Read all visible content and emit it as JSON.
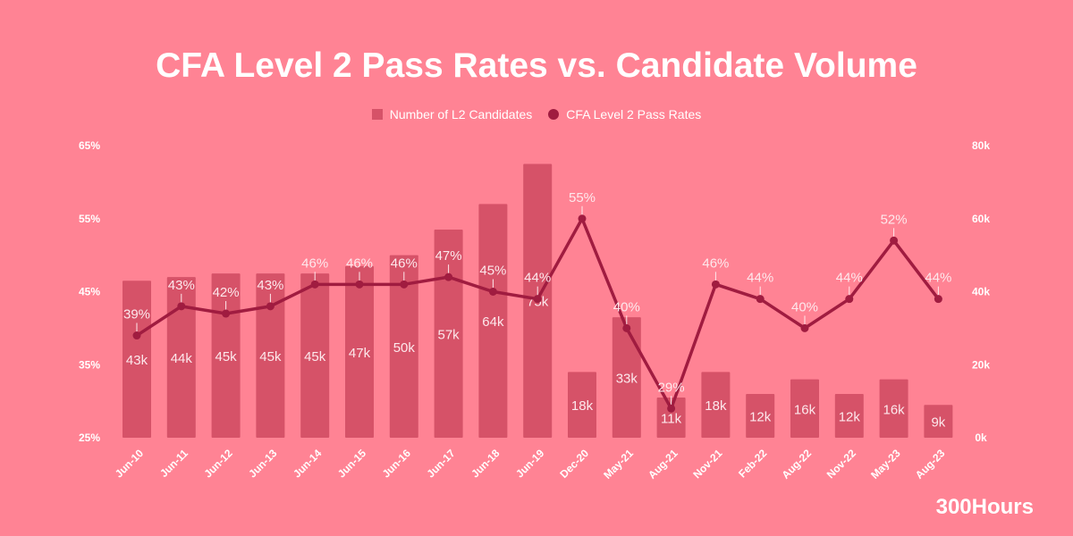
{
  "chart_data": {
    "type": "bar+line",
    "title": "CFA Level 2 Pass Rates vs. Candidate Volume",
    "categories": [
      "Jun-10",
      "Jun-11",
      "Jun-12",
      "Jun-13",
      "Jun-14",
      "Jun-15",
      "Jun-16",
      "Jun-17",
      "Jun-18",
      "Jun-19",
      "Dec-20",
      "May-21",
      "Aug-21",
      "Nov-21",
      "Feb-22",
      "Aug-22",
      "Nov-22",
      "May-23",
      "Aug-23"
    ],
    "series": [
      {
        "name": "Number of L2 Candidates",
        "type": "bar",
        "axis": "right",
        "values": [
          43,
          44,
          45,
          45,
          45,
          47,
          50,
          57,
          64,
          75,
          18,
          33,
          11,
          18,
          12,
          16,
          12,
          16,
          9
        ],
        "labels": [
          "43k",
          "44k",
          "45k",
          "45k",
          "45k",
          "47k",
          "50k",
          "57k",
          "64k",
          "75k",
          "18k",
          "33k",
          "11k",
          "18k",
          "12k",
          "16k",
          "12k",
          "16k",
          "9k"
        ]
      },
      {
        "name": "CFA Level 2 Pass Rates",
        "type": "line",
        "axis": "left",
        "values": [
          39,
          43,
          42,
          43,
          46,
          46,
          46,
          47,
          45,
          44,
          55,
          40,
          29,
          46,
          44,
          40,
          44,
          52,
          44
        ],
        "labels": [
          "39%",
          "43%",
          "42%",
          "43%",
          "46%",
          "46%",
          "46%",
          "47%",
          "45%",
          "44%",
          "55%",
          "40%",
          "29%",
          "46%",
          "44%",
          "40%",
          "44%",
          "52%",
          "44%"
        ]
      }
    ],
    "left_axis": {
      "range": [
        25,
        65
      ],
      "ticks": [
        "25%",
        "35%",
        "45%",
        "55%",
        "65%"
      ]
    },
    "right_axis": {
      "range": [
        0,
        80
      ],
      "ticks": [
        "0k",
        "20k",
        "40k",
        "60k",
        "80k"
      ]
    },
    "legend_position": "top",
    "grid": false,
    "colors": {
      "background": "#ff8394",
      "bar": "#d65268",
      "line": "#a01c40",
      "text": "#ffffff"
    }
  },
  "brand": "300Hours"
}
